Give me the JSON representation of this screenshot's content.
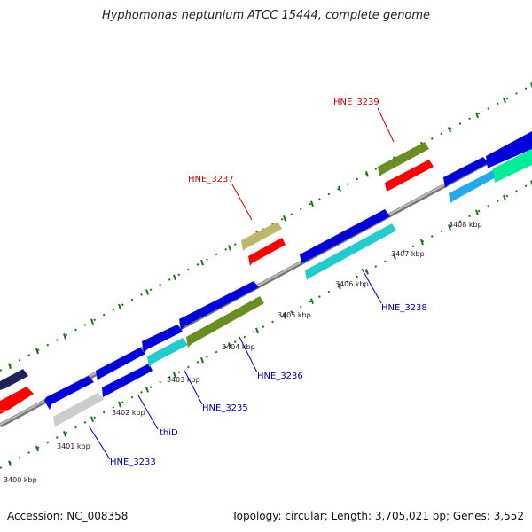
{
  "title": "Hyphomonas neptunium ATCC 15444, complete genome",
  "footer": {
    "accession": "Accession: NC_008358",
    "summary": "Topology: circular; Length: 3,705,021 bp; Genes: 3,552"
  },
  "colors": {
    "backbone": "#8a8a8a",
    "tick": "#1f6f1f",
    "label_upper": "#cc0000",
    "label_lower": "#0000aa",
    "blue": "#0000dd",
    "red": "#ff0000",
    "cyan": "#22cccc",
    "olive": "#6b8e23",
    "khaki": "#bdb76b",
    "lightblue": "#22aaee",
    "springgreen": "#00ee99",
    "gray": "#cccccc",
    "navy": "#22225a"
  },
  "ticks": [
    {
      "label": "3400 kbp"
    },
    {
      "label": "3401 kbp"
    },
    {
      "label": "3402 kbp"
    },
    {
      "label": "3403 kbp"
    },
    {
      "label": "3404 kbp"
    },
    {
      "label": "3405 kbp"
    },
    {
      "label": "3406 kbp"
    },
    {
      "label": "3407 kbp"
    },
    {
      "label": "3408 kbp"
    }
  ],
  "gene_labels": [
    {
      "text": "HNE_3239",
      "color": "#cc0000"
    },
    {
      "text": "HNE_3237",
      "color": "#cc0000"
    },
    {
      "text": "HNE_3238",
      "color": "#0000aa"
    },
    {
      "text": "HNE_3236",
      "color": "#0000aa"
    },
    {
      "text": "HNE_3235",
      "color": "#0000aa"
    },
    {
      "text": "thiD",
      "color": "#0000aa"
    },
    {
      "text": "HNE_3233",
      "color": "#0000aa"
    }
  ]
}
